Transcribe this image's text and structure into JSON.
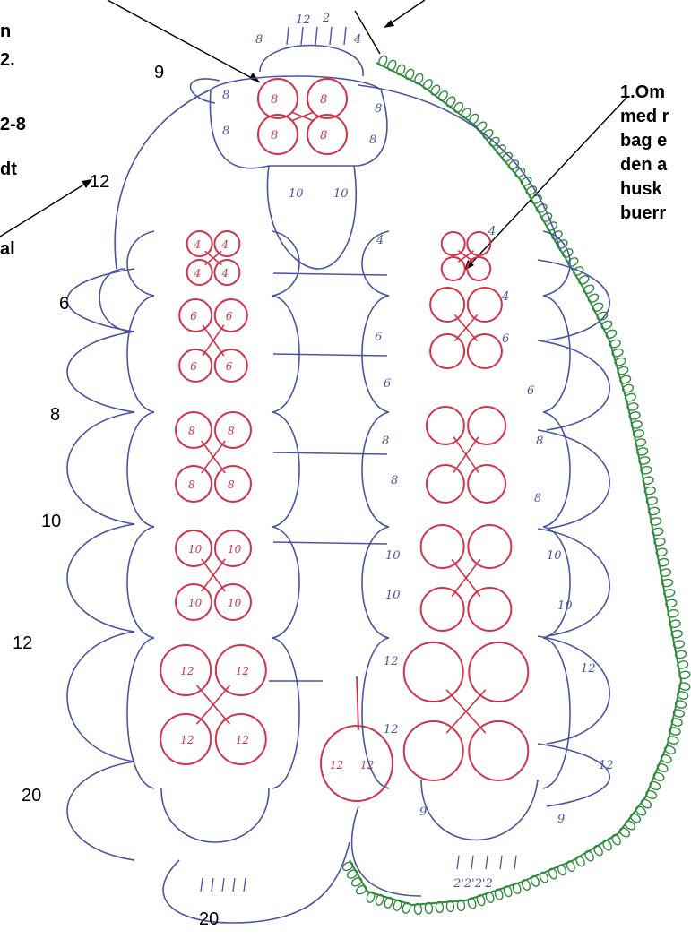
{
  "left_text_fragments": [
    "n",
    "2.",
    "2-8",
    "dt",
    "al"
  ],
  "right_note_lines": [
    "1.Om",
    "med r",
    "bag e",
    "den a",
    "husk",
    "buerr"
  ],
  "side_numbers": [
    "9",
    "12",
    "6",
    "8",
    "10",
    "12",
    "20"
  ],
  "bottom_number": "20",
  "top_picot_digits": [
    "8",
    "12",
    "2",
    "4"
  ],
  "bottom_picot_digits": "2'2'2'2",
  "colors": {
    "ring": "#d1334a",
    "chain": "#4a55a0",
    "edge": "#2e8b3c"
  }
}
